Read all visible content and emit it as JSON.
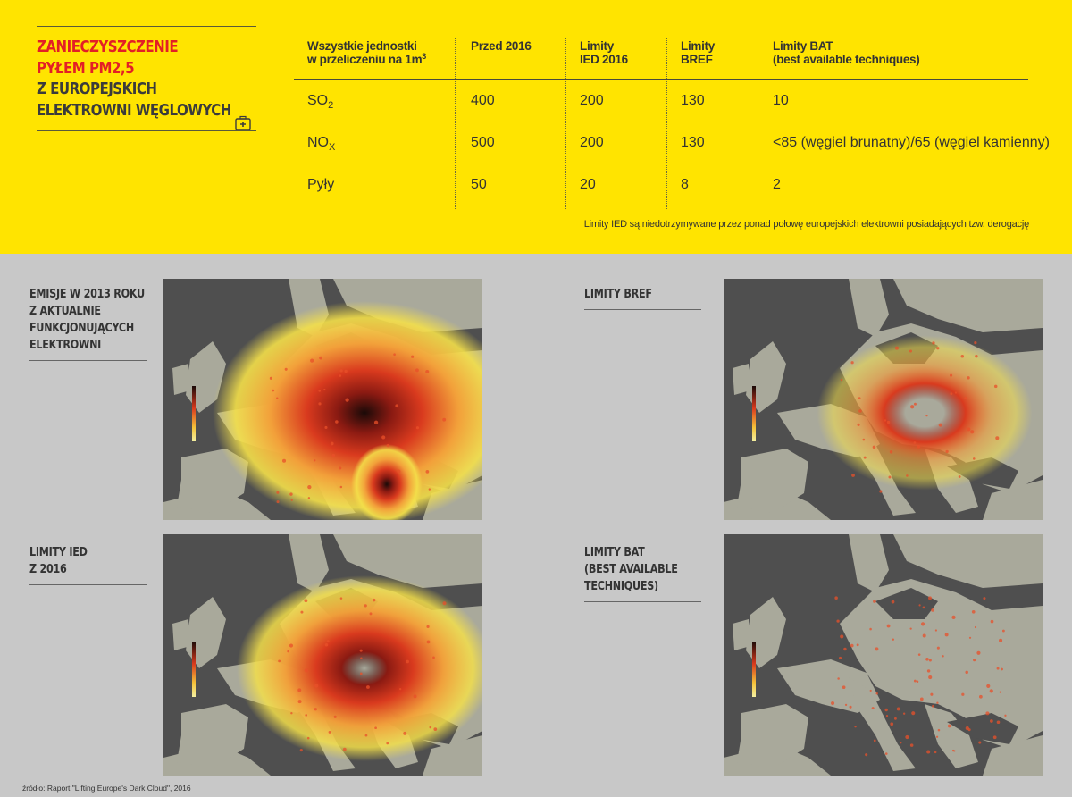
{
  "title": {
    "red_lines": [
      "ZANIECZYSZCZENIE",
      "PYŁEM PM2,5"
    ],
    "dark_lines": [
      "Z EUROPEJSKICH",
      "ELEKTROWNI WĘGLOWYCH"
    ]
  },
  "table": {
    "header_units": [
      "Wszystkie jednostki",
      "w przeliczeniu na 1m",
      "3"
    ],
    "columns": [
      {
        "lines": [
          "Przed 2016"
        ]
      },
      {
        "lines": [
          "Limity",
          "IED 2016"
        ]
      },
      {
        "lines": [
          "Limity",
          "BREF"
        ]
      },
      {
        "lines": [
          "Limity BAT",
          "(best available techniques)"
        ]
      }
    ],
    "rows": [
      {
        "pollutant": "SO",
        "sub": "2",
        "values": [
          "400",
          "200",
          "130",
          "10"
        ]
      },
      {
        "pollutant": "NO",
        "sub": "X",
        "values": [
          "500",
          "200",
          "130",
          "<85 (węgiel brunatny)/65 (węgiel kamienny)"
        ]
      },
      {
        "pollutant": "Pyły",
        "sub": "",
        "values": [
          "50",
          "20",
          "8",
          "2"
        ]
      }
    ]
  },
  "note": "Limity IED są niedotrzymywane przez ponad połowę europejskich elektrowni posiadających tzw. derogację",
  "maps": [
    {
      "label_lines": [
        "EMISJE W 2013 ROKU",
        "Z AKTUALNIE",
        "FUNKCJONUJĄCYCH",
        "ELEKTROWNI"
      ],
      "intensity": 1.0
    },
    {
      "label_lines": [
        "LIMITY BREF"
      ],
      "intensity": 0.45
    },
    {
      "label_lines": [
        "LIMITY IED",
        "Z 2016"
      ],
      "intensity": 0.7
    },
    {
      "label_lines": [
        "LIMITY BAT",
        "(BEST AVAILABLE",
        "TECHNIQUES)"
      ],
      "intensity": 0.12
    }
  ],
  "source": "źródło: Raport \"Lifting Europe's Dark Cloud\", 2016"
}
